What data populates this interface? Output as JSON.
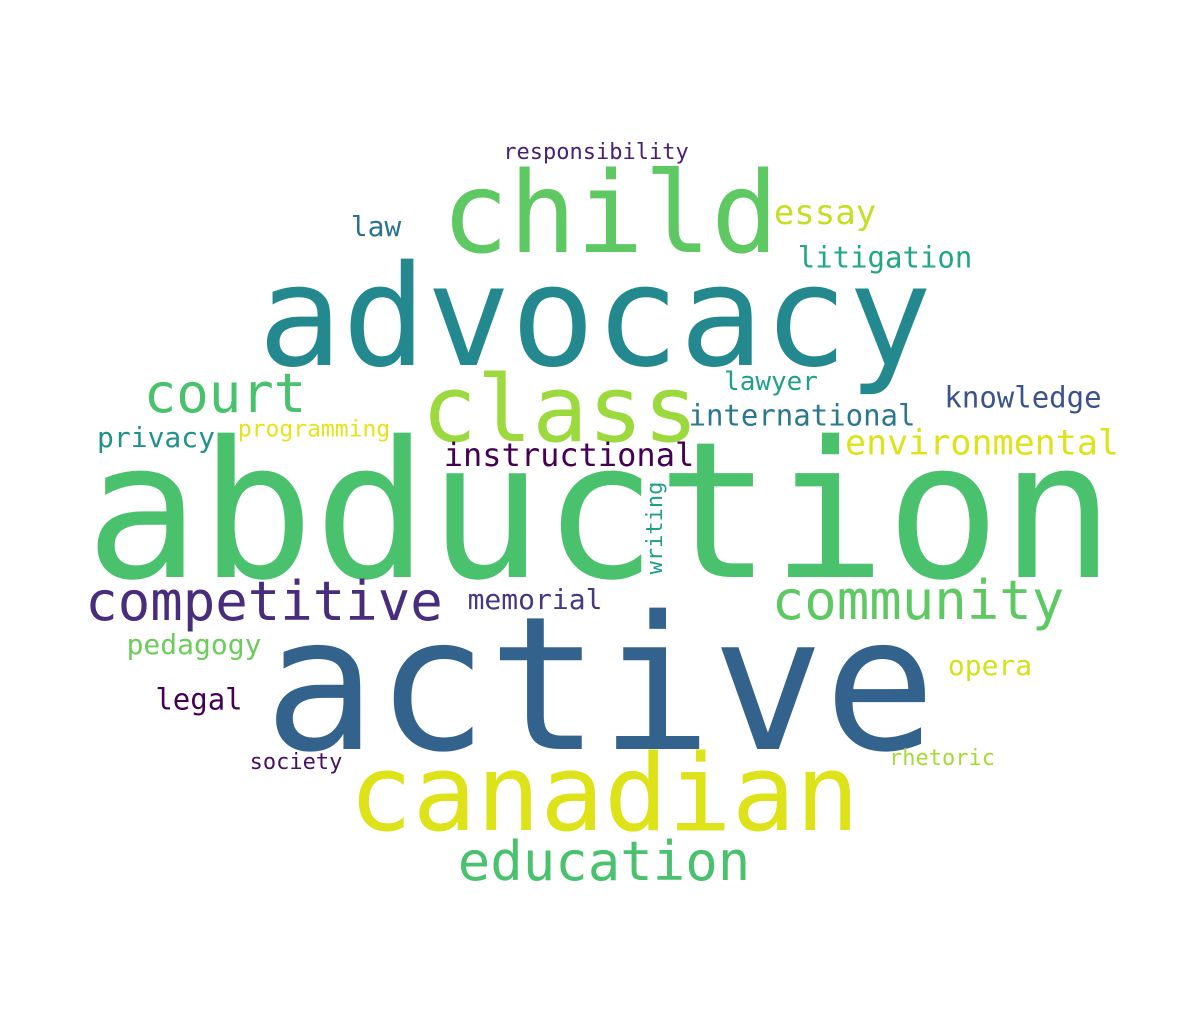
{
  "words": [
    {
      "key": "abduction",
      "text": "abduction",
      "color": "#4ac16d"
    },
    {
      "key": "active",
      "text": "active",
      "color": "#33638d"
    },
    {
      "key": "advocacy",
      "text": "advocacy",
      "color": "#23898e"
    },
    {
      "key": "child",
      "text": "child",
      "color": "#5ec962"
    },
    {
      "key": "canadian",
      "text": "canadian",
      "color": "#dde318"
    },
    {
      "key": "class",
      "text": "class",
      "color": "#9bd93c"
    },
    {
      "key": "competitive",
      "text": "competitive",
      "color": "#472d7b"
    },
    {
      "key": "community",
      "text": "community",
      "color": "#5ec962"
    },
    {
      "key": "court",
      "text": "court",
      "color": "#4ac16d"
    },
    {
      "key": "education",
      "text": "education",
      "color": "#4ac16d"
    },
    {
      "key": "environmental",
      "text": "environmental",
      "color": "#dde318"
    },
    {
      "key": "instructional",
      "text": "instructional",
      "color": "#440154"
    },
    {
      "key": "essay",
      "text": "essay",
      "color": "#c2df23"
    },
    {
      "key": "litigation",
      "text": "litigation",
      "color": "#22a785"
    },
    {
      "key": "knowledge",
      "text": "knowledge",
      "color": "#3b528b"
    },
    {
      "key": "international",
      "text": "international",
      "color": "#2a788e"
    },
    {
      "key": "lawyer",
      "text": "lawyer",
      "color": "#1fa187"
    },
    {
      "key": "privacy",
      "text": "privacy",
      "color": "#21918c"
    },
    {
      "key": "programming",
      "text": "programming",
      "color": "#e5e419"
    },
    {
      "key": "law",
      "text": "law",
      "color": "#2c728e"
    },
    {
      "key": "responsibility",
      "text": "responsibility",
      "color": "#482173"
    },
    {
      "key": "memorial",
      "text": "memorial",
      "color": "#443983"
    },
    {
      "key": "writing",
      "text": "writing",
      "color": "#1f9e89",
      "orientation": "vertical"
    },
    {
      "key": "pedagogy",
      "text": "pedagogy",
      "color": "#6ccd5a"
    },
    {
      "key": "opera",
      "text": "opera",
      "color": "#d2e21b"
    },
    {
      "key": "legal",
      "text": "legal",
      "color": "#440154"
    },
    {
      "key": "society",
      "text": "society",
      "color": "#471063"
    },
    {
      "key": "rhetoric",
      "text": "rhetoric",
      "color": "#a5db36"
    }
  ]
}
